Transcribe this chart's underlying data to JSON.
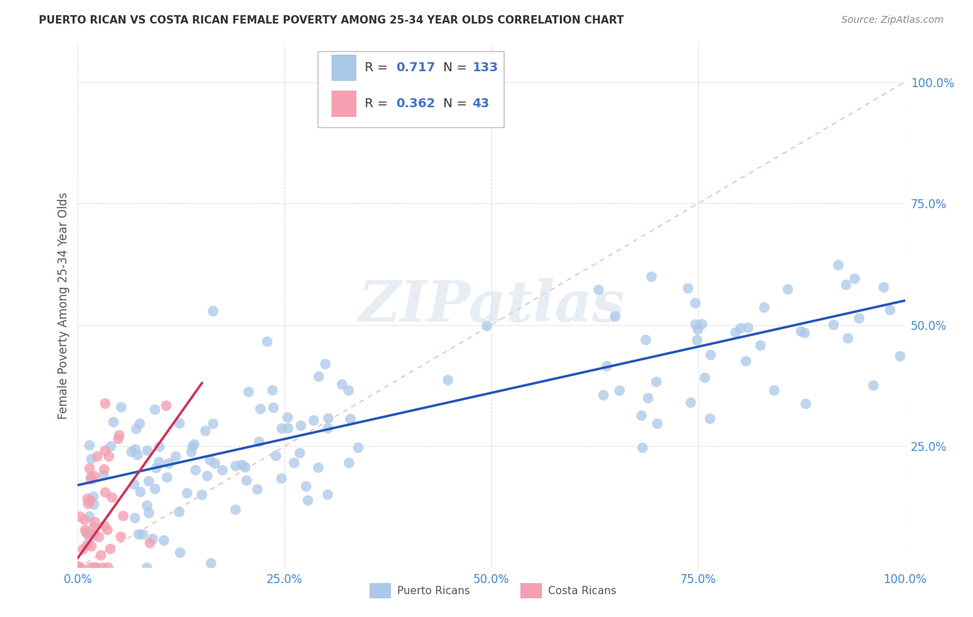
{
  "title": "PUERTO RICAN VS COSTA RICAN FEMALE POVERTY AMONG 25-34 YEAR OLDS CORRELATION CHART",
  "source": "Source: ZipAtlas.com",
  "ylabel": "Female Poverty Among 25-34 Year Olds",
  "xticks": [
    0.0,
    0.25,
    0.5,
    0.75,
    1.0
  ],
  "yticks": [
    0.0,
    0.25,
    0.5,
    0.75,
    1.0
  ],
  "xticklabels": [
    "0.0%",
    "25.0%",
    "50.0%",
    "75.0%",
    "100.0%"
  ],
  "yticklabels": [
    "",
    "25.0%",
    "50.0%",
    "75.0%",
    "100.0%"
  ],
  "pr_R": 0.717,
  "pr_N": 133,
  "cr_R": 0.362,
  "cr_N": 43,
  "pr_color": "#aac8e8",
  "cr_color": "#f4a0b0",
  "pr_line_color": "#2255bb",
  "cr_line_color": "#cc3355",
  "diagonal_color": "#e8b0b8",
  "watermark": "ZIPatlas",
  "background_color": "#ffffff",
  "grid_color": "#cccccc",
  "title_color": "#333333",
  "legend_text_color": "#4472c4",
  "pr_line_x0": 0.0,
  "pr_line_y0": 0.17,
  "pr_line_x1": 1.0,
  "pr_line_y1": 0.55,
  "cr_line_x0": 0.0,
  "cr_line_y0": 0.02,
  "cr_line_x1": 0.15,
  "cr_line_y1": 0.38
}
